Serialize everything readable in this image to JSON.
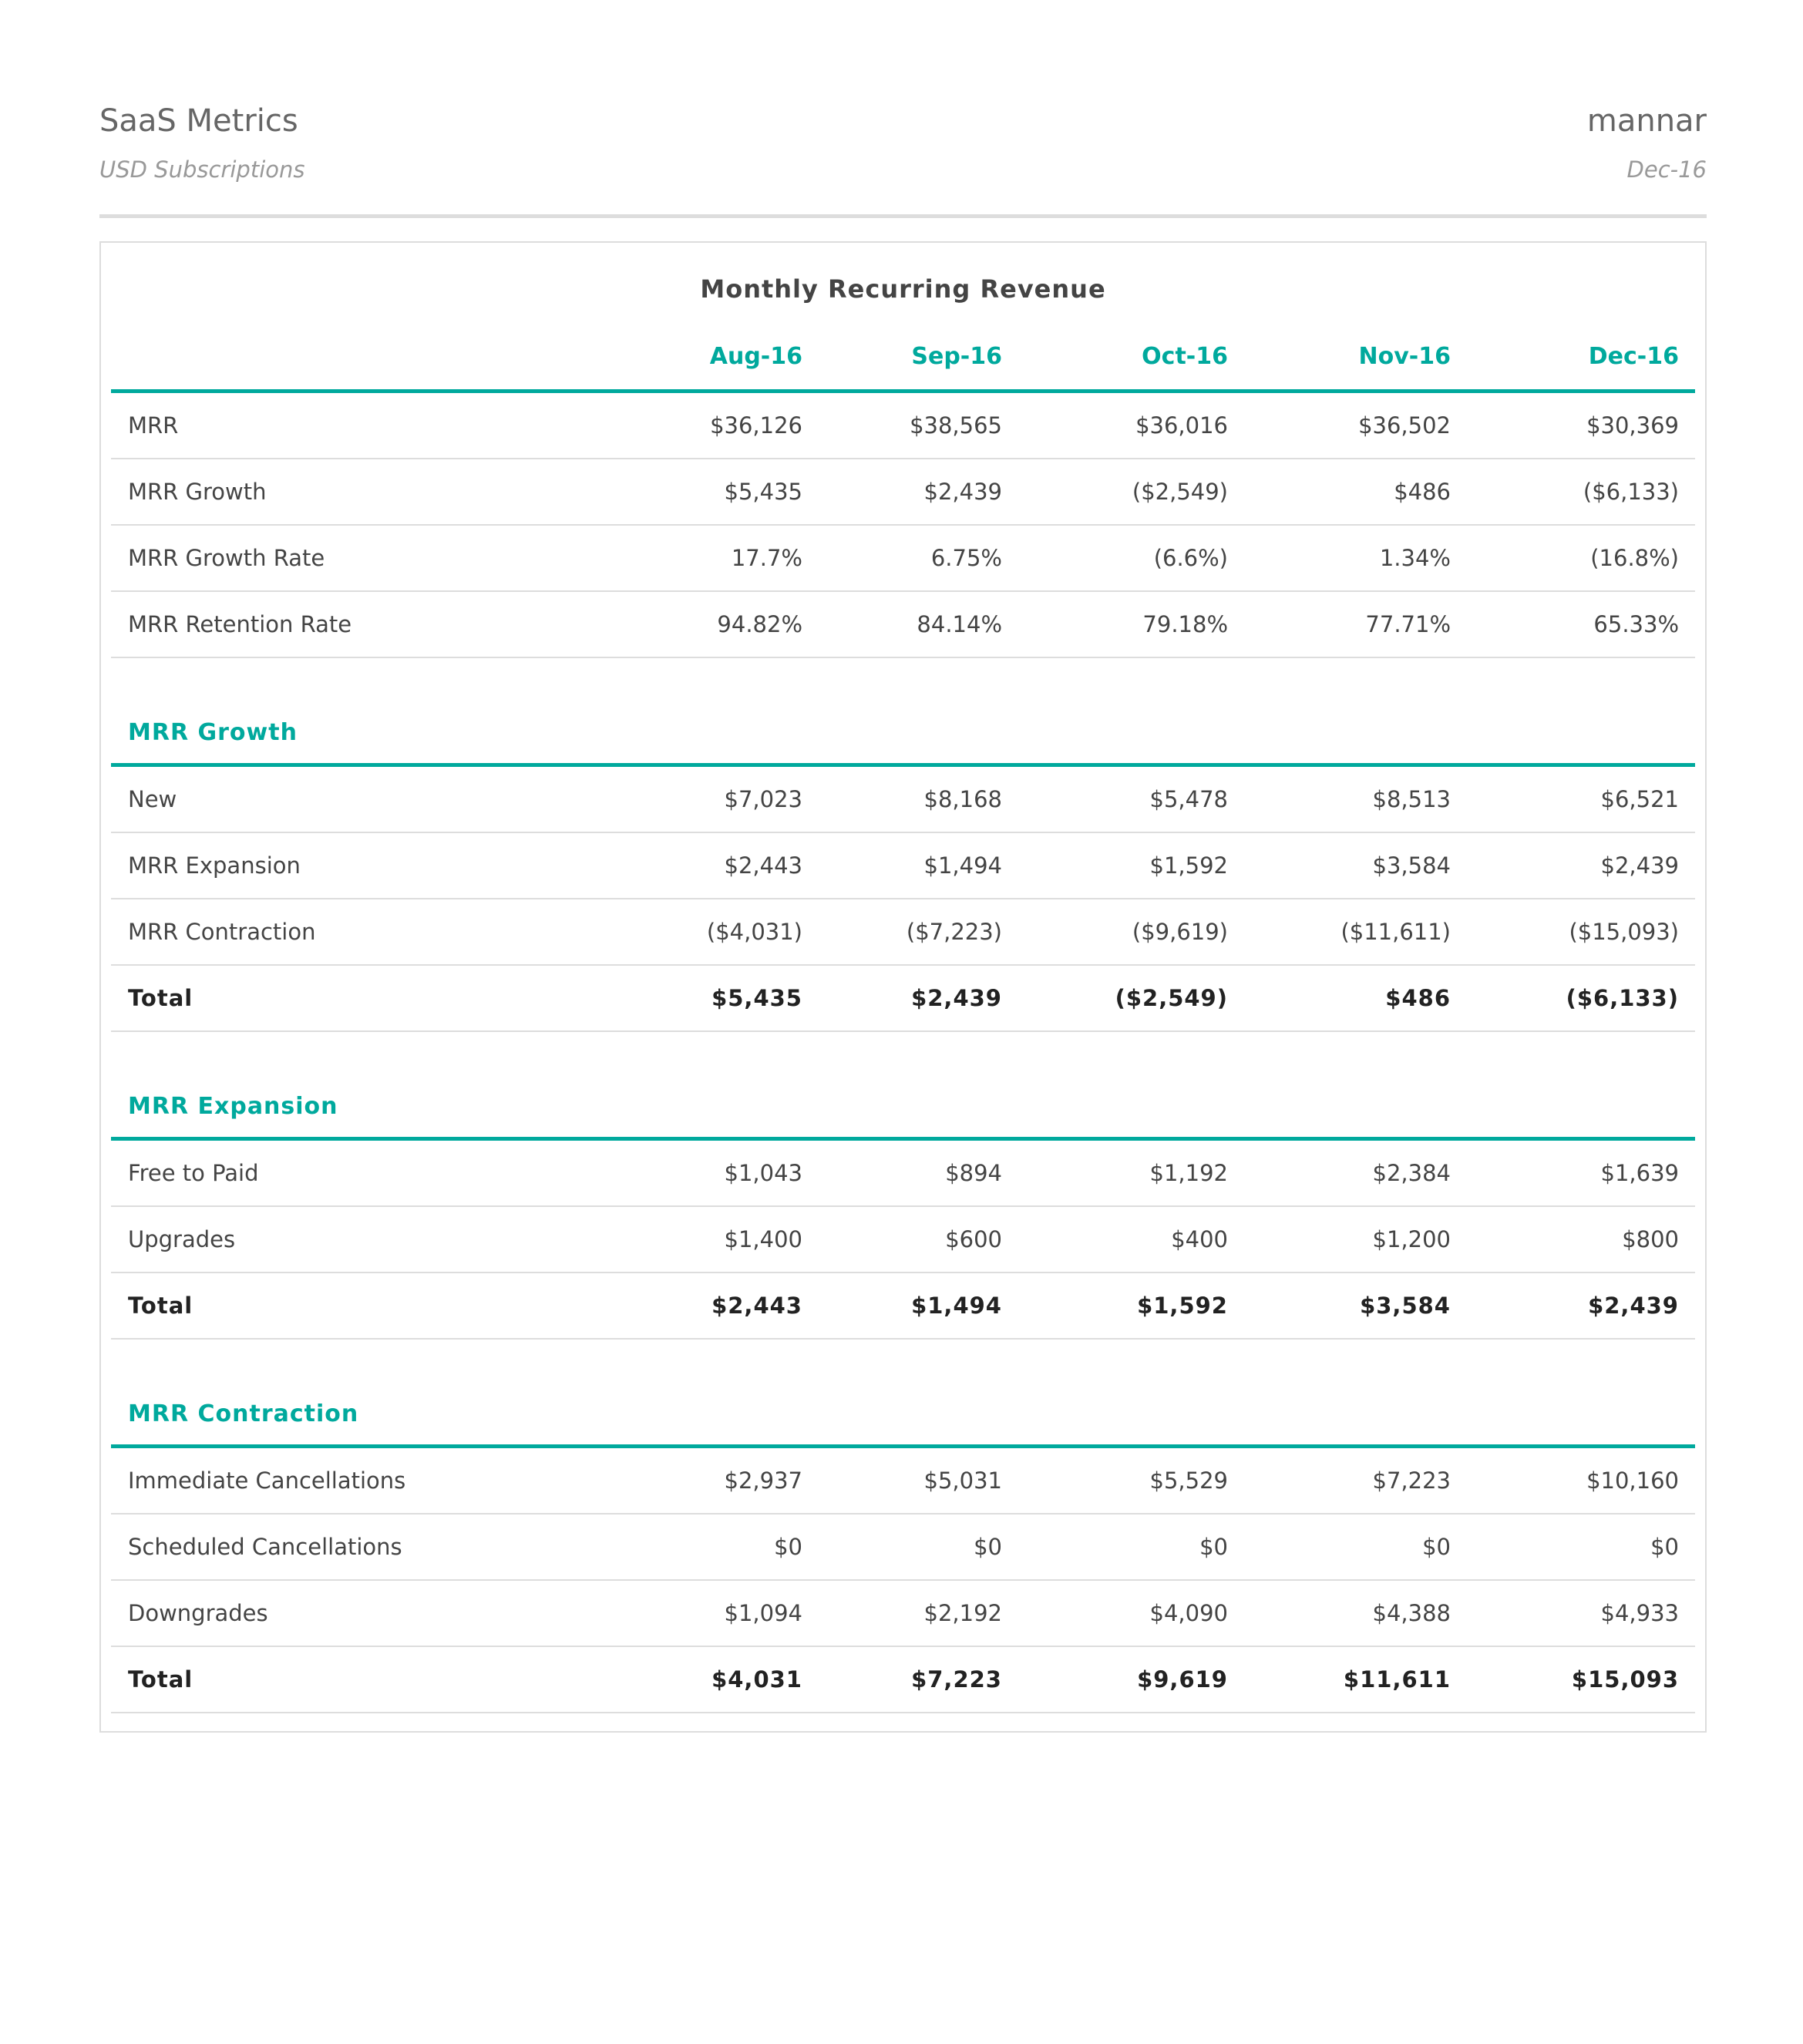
{
  "header": {
    "title": "SaaS Metrics",
    "subtitle": "USD Subscriptions",
    "user": "mannar",
    "period": "Dec-16"
  },
  "colors": {
    "accent": "#00a99d",
    "rule": "#dddddd"
  },
  "report": {
    "title": "Monthly Recurring Revenue",
    "months": [
      "Aug-16",
      "Sep-16",
      "Oct-16",
      "Nov-16",
      "Dec-16"
    ],
    "summary": [
      {
        "label": "MRR",
        "values": [
          "$36,126",
          "$38,565",
          "$36,016",
          "$36,502",
          "$30,369"
        ]
      },
      {
        "label": "MRR Growth",
        "values": [
          "$5,435",
          "$2,439",
          "($2,549)",
          "$486",
          "($6,133)"
        ]
      },
      {
        "label": "MRR Growth Rate",
        "values": [
          "17.7%",
          "6.75%",
          "(6.6%)",
          "1.34%",
          "(16.8%)"
        ]
      },
      {
        "label": "MRR Retention Rate",
        "values": [
          "94.82%",
          "84.14%",
          "79.18%",
          "77.71%",
          "65.33%"
        ]
      }
    ],
    "sections": [
      {
        "title": "MRR Growth",
        "rows": [
          {
            "label": "New",
            "values": [
              "$7,023",
              "$8,168",
              "$5,478",
              "$8,513",
              "$6,521"
            ]
          },
          {
            "label": "MRR Expansion",
            "values": [
              "$2,443",
              "$1,494",
              "$1,592",
              "$3,584",
              "$2,439"
            ]
          },
          {
            "label": "MRR Contraction",
            "values": [
              "($4,031)",
              "($7,223)",
              "($9,619)",
              "($11,611)",
              "($15,093)"
            ]
          },
          {
            "label": "Total",
            "total": true,
            "values": [
              "$5,435",
              "$2,439",
              "($2,549)",
              "$486",
              "($6,133)"
            ]
          }
        ]
      },
      {
        "title": "MRR Expansion",
        "rows": [
          {
            "label": "Free to Paid",
            "values": [
              "$1,043",
              "$894",
              "$1,192",
              "$2,384",
              "$1,639"
            ]
          },
          {
            "label": "Upgrades",
            "values": [
              "$1,400",
              "$600",
              "$400",
              "$1,200",
              "$800"
            ]
          },
          {
            "label": "Total",
            "total": true,
            "values": [
              "$2,443",
              "$1,494",
              "$1,592",
              "$3,584",
              "$2,439"
            ]
          }
        ]
      },
      {
        "title": "MRR Contraction",
        "rows": [
          {
            "label": "Immediate Cancellations",
            "values": [
              "$2,937",
              "$5,031",
              "$5,529",
              "$7,223",
              "$10,160"
            ]
          },
          {
            "label": "Scheduled Cancellations",
            "values": [
              "$0",
              "$0",
              "$0",
              "$0",
              "$0"
            ]
          },
          {
            "label": "Downgrades",
            "values": [
              "$1,094",
              "$2,192",
              "$4,090",
              "$4,388",
              "$4,933"
            ]
          },
          {
            "label": "Total",
            "total": true,
            "values": [
              "$4,031",
              "$7,223",
              "$9,619",
              "$11,611",
              "$15,093"
            ]
          }
        ]
      }
    ]
  }
}
